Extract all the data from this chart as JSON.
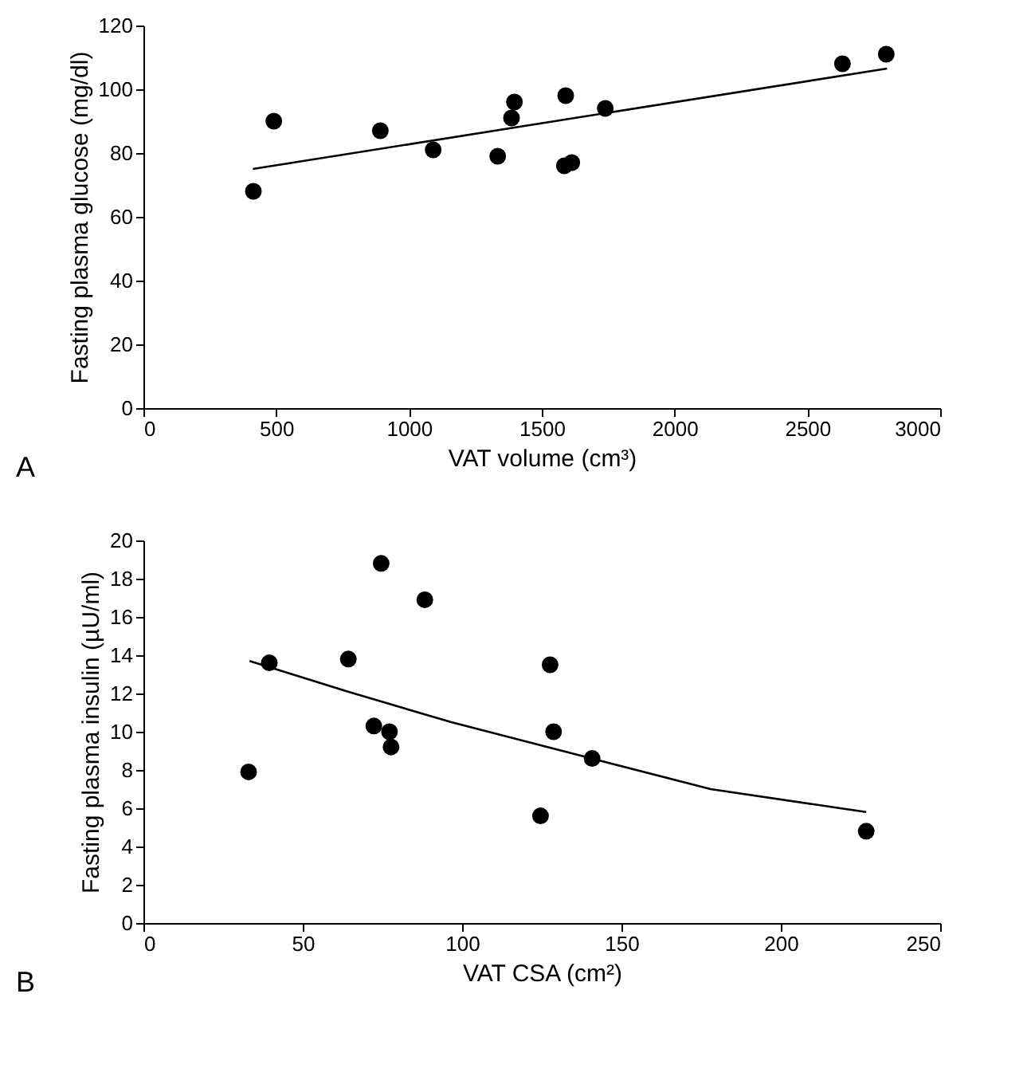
{
  "chart_data": [
    {
      "type": "scatter",
      "xlabel": "VAT volume (cm³)",
      "ylabel": "Fasting plasma glucose (mg/dl)",
      "xlim": [
        0,
        3000
      ],
      "xticks": [
        0,
        500,
        1000,
        1500,
        2000,
        2500,
        3000
      ],
      "ylim": [
        0,
        120
      ],
      "yticks": [
        0,
        20,
        40,
        60,
        80,
        100,
        120
      ],
      "grid": false,
      "legend": false,
      "annotations": [
        "A"
      ],
      "series": [
        {
          "marker": "circle",
          "color": "#000000",
          "x": [
            414,
            491,
            892,
            1091,
            1334,
            1386,
            1397,
            1590,
            1585,
            1613,
            1739,
            2632,
            2797
          ],
          "values": [
            68,
            90,
            87,
            81,
            79,
            91,
            96,
            98,
            76,
            77,
            94,
            108,
            111
          ]
        },
        {
          "type": "line",
          "marker": "none",
          "color": "#000000",
          "line_style": "solid",
          "x": [
            412,
            2800
          ],
          "values": [
            75,
            106.5
          ]
        }
      ]
    },
    {
      "type": "scatter",
      "xlabel": "VAT CSA (cm²)",
      "ylabel": "Fasting plasma insulin (µU/ml)",
      "xlim": [
        0,
        250
      ],
      "xticks": [
        0,
        50,
        100,
        150,
        200,
        250
      ],
      "ylim": [
        0,
        20
      ],
      "yticks": [
        0,
        2,
        4,
        6,
        8,
        10,
        12,
        14,
        16,
        18,
        20
      ],
      "grid": false,
      "legend": false,
      "annotations": [
        "B"
      ],
      "series": [
        {
          "marker": "circle",
          "color": "#000000",
          "x": [
            33,
            39.5,
            64.3,
            74.6,
            72.3,
            77.2,
            77.7,
            88.3,
            124.6,
            127.6,
            128.7,
            140.8,
            226.8
          ],
          "values": [
            7.9,
            13.6,
            13.8,
            18.8,
            10.3,
            10.0,
            9.2,
            16.9,
            5.6,
            13.5,
            10.0,
            8.6,
            4.8
          ]
        },
        {
          "type": "line",
          "marker": "none",
          "color": "#000000",
          "line_style": "solid",
          "x": [
            33.3,
            64,
            96.6,
            140.6,
            178,
            226.8
          ],
          "values": [
            13.7,
            12.1,
            10.5,
            8.6,
            7.0,
            5.8
          ]
        }
      ]
    }
  ]
}
